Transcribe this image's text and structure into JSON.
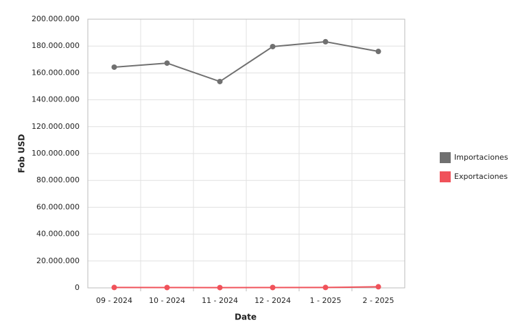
{
  "chart_data": {
    "type": "line",
    "x_label": "Date",
    "y_label": "Fob USD",
    "categories": [
      "09 - 2024",
      "10 - 2024",
      "11 - 2024",
      "12 - 2024",
      "1 - 2025",
      "2 - 2025"
    ],
    "series": [
      {
        "name": "Importaciones",
        "color": "#707070",
        "values": [
          164300000,
          167300000,
          153600000,
          179600000,
          183200000,
          176000000
        ]
      },
      {
        "name": "Exportaciones",
        "color": "#f0525a",
        "values": [
          300000,
          250000,
          200000,
          250000,
          300000,
          800000
        ]
      }
    ],
    "ylim": [
      0,
      200000000
    ],
    "yticks": [
      0,
      {
        "value": 20000000,
        "label": "20.000.000"
      },
      {
        "value": 40000000,
        "label": "40.000.000"
      },
      {
        "value": 60000000,
        "label": "60.000.000"
      },
      {
        "value": 80000000,
        "label": "80.000.000"
      },
      {
        "value": 100000000,
        "label": "100.000.000"
      },
      {
        "value": 120000000,
        "label": "120.000.000"
      },
      {
        "value": 140000000,
        "label": "140.000.000"
      },
      {
        "value": 160000000,
        "label": "160.000.000"
      },
      {
        "value": 180000000,
        "label": "180.000.000"
      },
      {
        "value": 200000000,
        "label": "200.000.000"
      }
    ],
    "grid": true,
    "legend": "right"
  }
}
